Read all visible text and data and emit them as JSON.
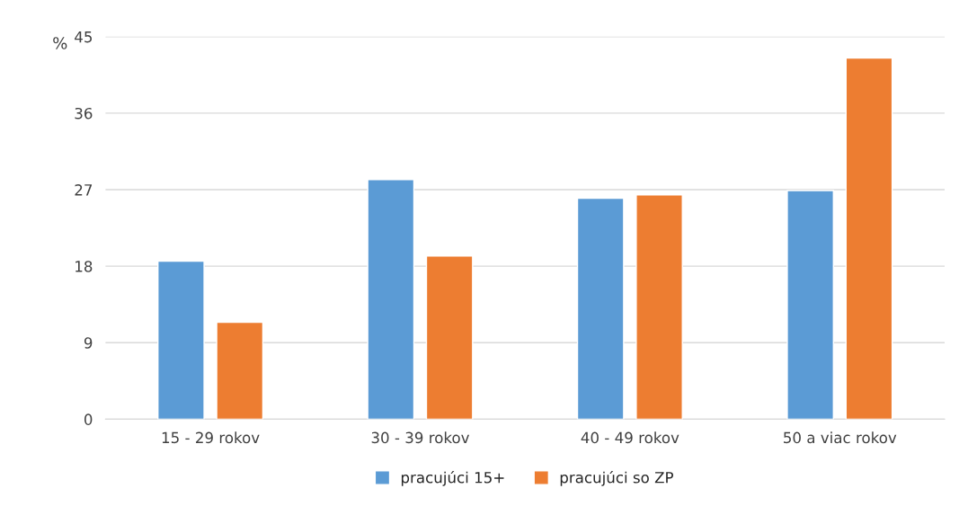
{
  "chart_data": {
    "type": "bar",
    "ylabel": "%",
    "categories": [
      "15 - 29 rokov",
      "30 - 39 rokov",
      "40 - 49 rokov",
      "50 a viac rokov"
    ],
    "series": [
      {
        "name": "pracujúci 15+",
        "color": "#5b9bd5",
        "values": [
          18.6,
          28.2,
          26.0,
          26.9
        ]
      },
      {
        "name": "pracujúci so ZP",
        "color": "#ed7d31",
        "values": [
          11.4,
          19.2,
          26.4,
          42.5
        ]
      }
    ],
    "ylim": [
      0,
      45
    ],
    "yticks": [
      0,
      9,
      18,
      27,
      36,
      45
    ],
    "grid": "y",
    "legend": "bottom"
  }
}
